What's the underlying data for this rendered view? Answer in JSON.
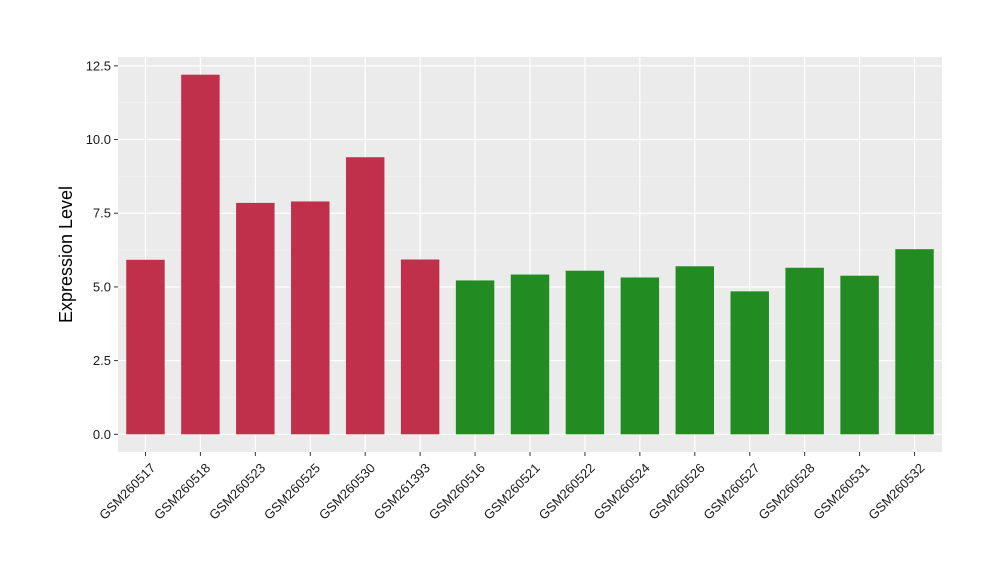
{
  "chart_data": {
    "type": "bar",
    "title": "",
    "xlabel": "",
    "ylabel": "Expression Level",
    "ylim": [
      -0.6,
      12.8
    ],
    "yticks": [
      0.0,
      2.5,
      5.0,
      7.5,
      10.0,
      12.5
    ],
    "ytick_labels": [
      "0.0",
      "2.5",
      "5.0",
      "7.5",
      "10.0",
      "12.5"
    ],
    "grid": true,
    "background": "#ebebeb",
    "categories": [
      "GSM260517",
      "GSM260518",
      "GSM260523",
      "GSM260525",
      "GSM260530",
      "GSM261393",
      "GSM260516",
      "GSM260521",
      "GSM260522",
      "GSM260524",
      "GSM260526",
      "GSM260527",
      "GSM260528",
      "GSM260531",
      "GSM260532"
    ],
    "values": [
      5.92,
      12.2,
      7.85,
      7.9,
      9.4,
      5.93,
      5.22,
      5.42,
      5.55,
      5.32,
      5.7,
      4.85,
      5.65,
      5.38,
      6.28
    ],
    "bar_colors": [
      "#c1304a",
      "#c1304a",
      "#c1304a",
      "#c1304a",
      "#c1304a",
      "#c1304a",
      "#228b22",
      "#228b22",
      "#228b22",
      "#228b22",
      "#228b22",
      "#228b22",
      "#228b22",
      "#228b22",
      "#228b22"
    ]
  }
}
